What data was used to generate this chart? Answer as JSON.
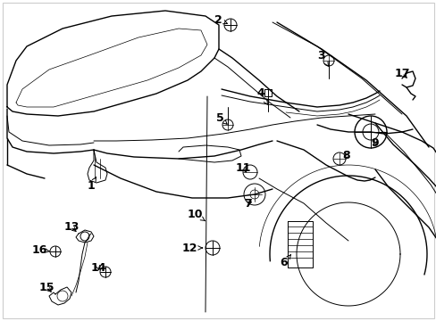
{
  "background_color": "#ffffff",
  "line_color": "#000000",
  "fig_width": 4.89,
  "fig_height": 3.6,
  "dpi": 100,
  "font_size_label": 9,
  "border_color": "#cccccc",
  "border_lw": 0.8
}
